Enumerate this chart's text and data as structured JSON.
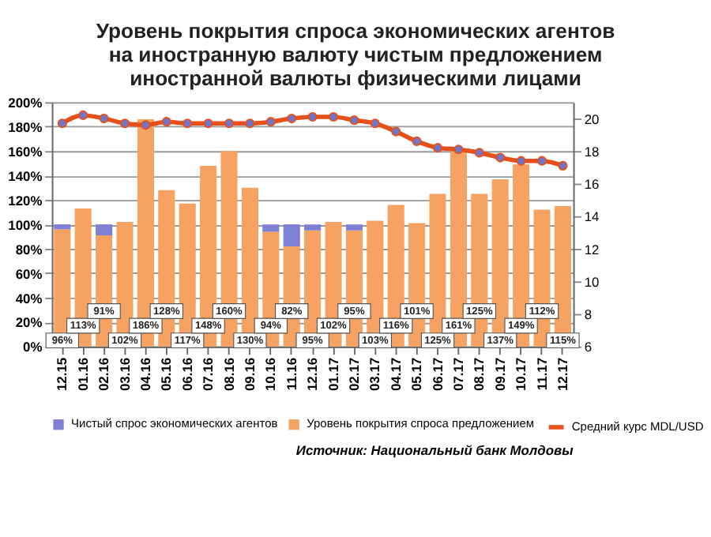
{
  "chart_data": {
    "type": "bar",
    "title": "Уровень покрытия спроса экономических агентов\nна иностранную валюту чистым предложением\nиностранной валюты физическими лицами",
    "categories": [
      "12.15",
      "01.16",
      "02.16",
      "03.16",
      "04.16",
      "05.16",
      "06.16",
      "07.16",
      "08.16",
      "09.16",
      "10.16",
      "11.16",
      "12.16",
      "01.17",
      "02.17",
      "03.17",
      "04.17",
      "05.17",
      "06.17",
      "07.17",
      "08.17",
      "09.17",
      "10.17",
      "11.17",
      "12.17"
    ],
    "stacked": true,
    "series": [
      {
        "name": "Уровень покрытия спроса предложением",
        "color": "#f5a263",
        "values": [
          96,
          113,
          91,
          102,
          186,
          128,
          117,
          148,
          160,
          130,
          94,
          82,
          95,
          102,
          95,
          103,
          116,
          101,
          125,
          161,
          125,
          137,
          149,
          112,
          115
        ],
        "value_labels": [
          "96%",
          "113%",
          "91%",
          "102%",
          "186%",
          "128%",
          "117%",
          "148%",
          "160%",
          "130%",
          "94%",
          "82%",
          "95%",
          "102%",
          "95%",
          "103%",
          "116%",
          "101%",
          "125%",
          "161%",
          "125%",
          "137%",
          "149%",
          "112%",
          "115%"
        ]
      },
      {
        "name": "Чистый спрос экономических агентов",
        "color": "#7d80d4",
        "values": [
          4,
          null,
          9,
          null,
          null,
          null,
          null,
          null,
          null,
          null,
          6,
          18,
          5,
          null,
          5,
          null,
          null,
          null,
          null,
          null,
          null,
          null,
          null,
          null,
          null
        ]
      },
      {
        "name": "Средний курс MDL/USD",
        "type": "line",
        "axis": "y2",
        "color": "#e8501a",
        "marker": "circle",
        "values": [
          19.7,
          20.2,
          20.0,
          19.7,
          19.6,
          19.8,
          19.7,
          19.7,
          19.7,
          19.7,
          19.8,
          20.0,
          20.1,
          20.1,
          19.9,
          19.7,
          19.2,
          18.6,
          18.2,
          18.1,
          17.9,
          17.6,
          17.4,
          17.4,
          17.1
        ]
      }
    ],
    "ylim": [
      0,
      200
    ],
    "yticks": [
      {
        "value": 0,
        "label": "0%"
      },
      {
        "value": 20,
        "label": "20%"
      },
      {
        "value": 40,
        "label": "40%"
      },
      {
        "value": 60,
        "label": "60%"
      },
      {
        "value": 80,
        "label": "80%"
      },
      {
        "value": 100,
        "label": "100%"
      },
      {
        "value": 120,
        "label": "120%"
      },
      {
        "value": 140,
        "label": "140%"
      },
      {
        "value": 160,
        "label": "160%"
      },
      {
        "value": 180,
        "label": "180%"
      },
      {
        "value": 200,
        "label": "200%"
      }
    ],
    "y2lim": [
      6,
      21
    ],
    "y2ticks": [
      6,
      8,
      10,
      12,
      14,
      16,
      18,
      20
    ],
    "grid": "y",
    "legend": "bottom",
    "annotations": [
      "Источник: Национальный банк Молдовы"
    ]
  }
}
